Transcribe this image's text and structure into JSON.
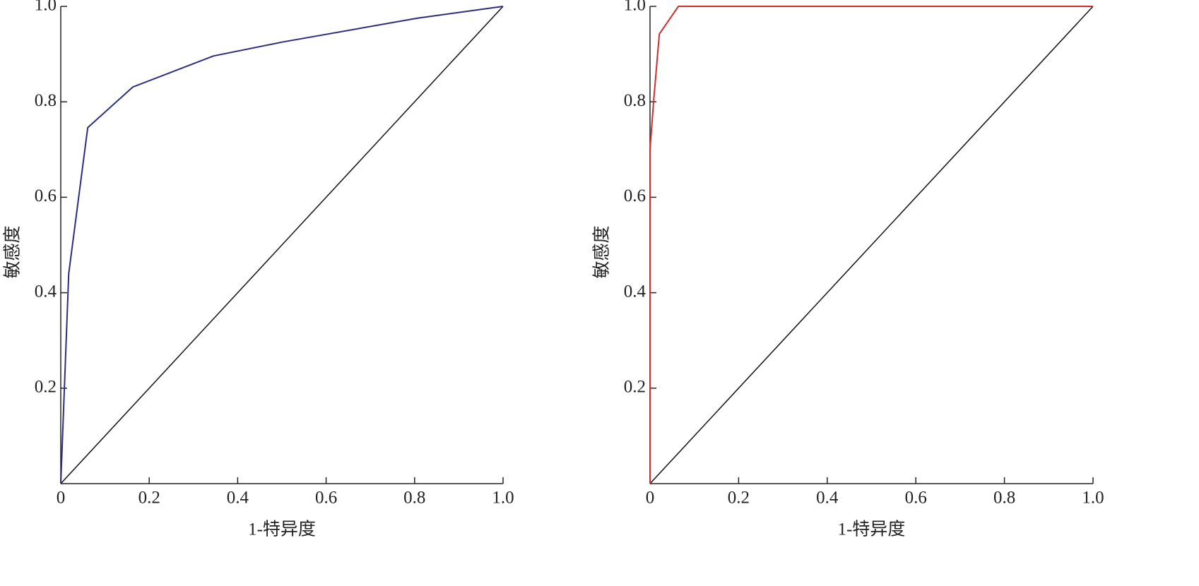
{
  "chart_data": [
    {
      "type": "line",
      "xlabel": "1-特异度",
      "ylabel": "敏感度",
      "color": "#2b2e7e",
      "x": [
        0,
        0.018,
        0.061,
        0.163,
        0.345,
        0.5,
        0.805,
        1
      ],
      "values": [
        0,
        0.44,
        0.746,
        0.831,
        0.896,
        0.925,
        0.975,
        1
      ],
      "xlim": [
        0,
        1
      ],
      "ylim": [
        0,
        1
      ],
      "xticks": [
        0,
        0.2,
        0.4,
        0.6,
        0.8,
        {
          "value": 1,
          "label": "1.0"
        }
      ],
      "yticks": [
        0.2,
        0.4,
        0.6,
        0.8,
        {
          "value": 1,
          "label": "1.0"
        }
      ]
    },
    {
      "type": "line",
      "xlabel": "1-特异度",
      "ylabel": "敏感度",
      "color": "#d62a2a",
      "x": [
        0,
        0,
        0.008,
        0.021,
        0.064,
        1
      ],
      "values": [
        0,
        0.7,
        0.8,
        0.942,
        1,
        1
      ],
      "xlim": [
        0,
        1
      ],
      "ylim": [
        0,
        1
      ],
      "xticks": [
        0,
        0.2,
        0.4,
        0.6,
        0.8,
        {
          "value": 1,
          "label": "1.0"
        }
      ],
      "yticks": [
        0.2,
        0.4,
        0.6,
        0.8,
        {
          "value": 1,
          "label": "1.0"
        }
      ]
    }
  ]
}
